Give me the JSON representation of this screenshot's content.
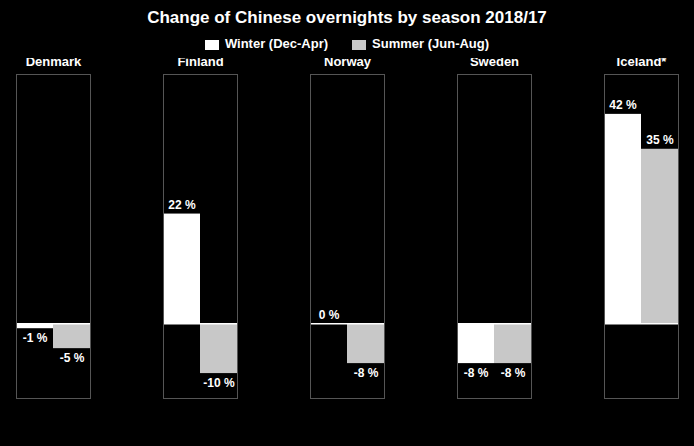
{
  "chart_data": {
    "type": "bar",
    "title": "Change of Chinese overnights by season 2018/17",
    "categories": [
      "Denmark",
      "Finland",
      "Norway",
      "Sweden",
      "Iceland*"
    ],
    "series": [
      {
        "name": "Winter (Dec-Apr)",
        "color": "#ffffff",
        "values": [
          -1,
          22,
          0,
          -8,
          42
        ],
        "value_labels": [
          "-1 %",
          "22 %",
          "0 %",
          "-8 %",
          "42 %"
        ]
      },
      {
        "name": "Summer (Jun-Aug)",
        "color": "#c8c8c8",
        "values": [
          -5,
          -10,
          -8,
          -8,
          35
        ],
        "value_labels": [
          "-5 %",
          "-10 %",
          "-8 %",
          "-8 %",
          "35 %"
        ]
      }
    ],
    "ylim": [
      -15,
      50
    ],
    "data_labels": true,
    "tick_labels": "x",
    "legend": "upper center"
  }
}
